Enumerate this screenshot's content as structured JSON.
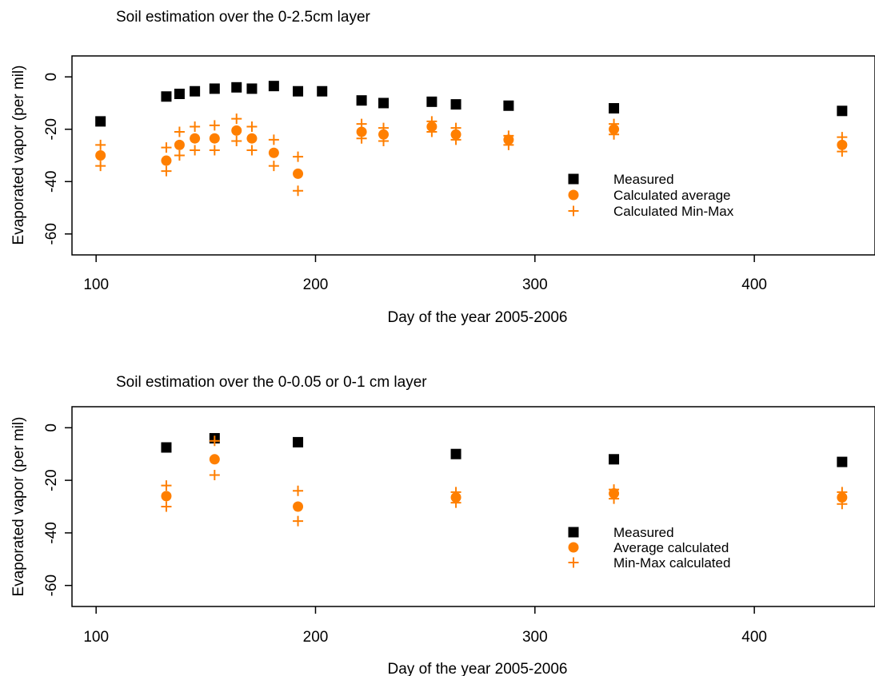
{
  "colors": {
    "measured": "#000000",
    "calculated": "#ff7f00",
    "frame": "#000000"
  },
  "chart_data": [
    {
      "type": "scatter",
      "title": "Soil estimation over the 0-2.5cm layer",
      "xlabel": "Day of the year 2005-2006",
      "ylabel": "Evaporated vapor (per mil)",
      "xlim": [
        89,
        455
      ],
      "ylim": [
        -68,
        8
      ],
      "xticks": [
        100,
        200,
        300,
        400
      ],
      "yticks": [
        0,
        -20,
        -40,
        -60
      ],
      "grid": false,
      "legend_position": "lower-right",
      "series": [
        {
          "name": "Measured",
          "marker": "square",
          "color": "#000000",
          "points": [
            [
              102,
              -17
            ],
            [
              132,
              -7.5
            ],
            [
              138,
              -6.5
            ],
            [
              145,
              -5.5
            ],
            [
              154,
              -4.5
            ],
            [
              164,
              -4
            ],
            [
              171,
              -4.5
            ],
            [
              181,
              -3.5
            ],
            [
              192,
              -5.5
            ],
            [
              203,
              -5.5
            ],
            [
              221,
              -9
            ],
            [
              231,
              -10
            ],
            [
              253,
              -9.5
            ],
            [
              264,
              -10.5
            ],
            [
              288,
              -11
            ],
            [
              336,
              -12
            ],
            [
              440,
              -13
            ]
          ]
        },
        {
          "name": "Calculated average",
          "marker": "circle",
          "color": "#ff7f00",
          "points": [
            [
              102,
              -30
            ],
            [
              132,
              -32
            ],
            [
              138,
              -26
            ],
            [
              145,
              -23.5
            ],
            [
              154,
              -23.5
            ],
            [
              164,
              -20.5
            ],
            [
              171,
              -23.5
            ],
            [
              181,
              -29
            ],
            [
              192,
              -37
            ],
            [
              221,
              -21
            ],
            [
              231,
              -22
            ],
            [
              253,
              -19
            ],
            [
              264,
              -22
            ],
            [
              288,
              -24
            ],
            [
              336,
              -20
            ],
            [
              440,
              -26
            ]
          ]
        },
        {
          "name": "Calculated Min-Max",
          "marker": "plus",
          "color": "#ff7f00",
          "points": [
            [
              102,
              -26
            ],
            [
              102,
              -34
            ],
            [
              132,
              -27
            ],
            [
              132,
              -36
            ],
            [
              138,
              -21
            ],
            [
              138,
              -30
            ],
            [
              145,
              -19
            ],
            [
              145,
              -28
            ],
            [
              154,
              -18.5
            ],
            [
              154,
              -28
            ],
            [
              164,
              -16
            ],
            [
              164,
              -24.5
            ],
            [
              171,
              -19
            ],
            [
              171,
              -28
            ],
            [
              181,
              -24
            ],
            [
              181,
              -34
            ],
            [
              192,
              -30.5
            ],
            [
              192,
              -43.5
            ],
            [
              221,
              -18
            ],
            [
              221,
              -23.5
            ],
            [
              231,
              -19.5
            ],
            [
              231,
              -24.5
            ],
            [
              253,
              -17
            ],
            [
              253,
              -21
            ],
            [
              264,
              -19.5
            ],
            [
              264,
              -24
            ],
            [
              288,
              -22.5
            ],
            [
              288,
              -26
            ],
            [
              336,
              -18
            ],
            [
              336,
              -22
            ],
            [
              440,
              -23
            ],
            [
              440,
              -28.5
            ]
          ]
        }
      ]
    },
    {
      "type": "scatter",
      "title": "Soil estimation over the 0-0.05 or 0-1 cm layer",
      "xlabel": "Day of the year 2005-2006",
      "ylabel": "Evaporated vapor (per mil)",
      "xlim": [
        89,
        455
      ],
      "ylim": [
        -68,
        8
      ],
      "xticks": [
        100,
        200,
        300,
        400
      ],
      "yticks": [
        0,
        -20,
        -40,
        -60
      ],
      "grid": false,
      "legend_position": "lower-right",
      "series": [
        {
          "name": "Measured",
          "marker": "square",
          "color": "#000000",
          "points": [
            [
              132,
              -7.5
            ],
            [
              154,
              -4
            ],
            [
              192,
              -5.5
            ],
            [
              264,
              -10
            ],
            [
              336,
              -12
            ],
            [
              440,
              -13
            ]
          ]
        },
        {
          "name": "Average calculated",
          "marker": "circle",
          "color": "#ff7f00",
          "points": [
            [
              132,
              -26
            ],
            [
              154,
              -12
            ],
            [
              192,
              -30
            ],
            [
              264,
              -26.5
            ],
            [
              336,
              -25
            ],
            [
              440,
              -26.5
            ]
          ]
        },
        {
          "name": "Min-Max calculated",
          "marker": "plus",
          "color": "#ff7f00",
          "points": [
            [
              132,
              -22
            ],
            [
              132,
              -30
            ],
            [
              154,
              -5
            ],
            [
              154,
              -18
            ],
            [
              192,
              -24
            ],
            [
              192,
              -35.5
            ],
            [
              264,
              -24.5
            ],
            [
              264,
              -28.5
            ],
            [
              336,
              -23.5
            ],
            [
              336,
              -27
            ],
            [
              440,
              -24.5
            ],
            [
              440,
              -29
            ]
          ]
        }
      ]
    }
  ]
}
